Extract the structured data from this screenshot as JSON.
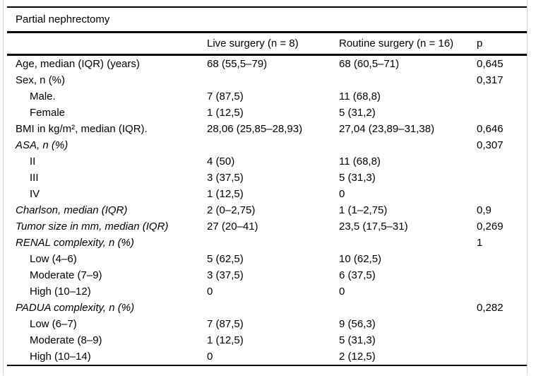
{
  "table": {
    "title": "Partial nephrectomy",
    "header": {
      "label": "",
      "live": "Live surgery (n = 8)",
      "routine": "Routine surgery (n = 16)",
      "p": "p"
    },
    "rows": [
      {
        "label": "Age, median (IQR) (years)",
        "indent": false,
        "italic": false,
        "live": "68 (55,5–79)",
        "routine": "68 (60,5–71)",
        "p": "0,645"
      },
      {
        "label": "Sex, n (%)",
        "indent": false,
        "italic": false,
        "live": "",
        "routine": "",
        "p": "0,317"
      },
      {
        "label": "Male.",
        "indent": true,
        "italic": false,
        "live": "7 (87,5)",
        "routine": "11 (68,8)",
        "p": ""
      },
      {
        "label": "Female",
        "indent": true,
        "italic": false,
        "live": "1 (12,5)",
        "routine": "5 (31,2)",
        "p": ""
      },
      {
        "label": "BMI in kg/m², median (IQR).",
        "indent": false,
        "italic": false,
        "live": "28,06 (25,85–28,93)",
        "routine": "27,04 (23,89–31,38)",
        "p": "0,646"
      },
      {
        "label": "ASA, n (%)",
        "indent": false,
        "italic": true,
        "live": "",
        "routine": "",
        "p": "0,307"
      },
      {
        "label": "II",
        "indent": true,
        "italic": false,
        "live": "4 (50)",
        "routine": "11 (68,8)",
        "p": ""
      },
      {
        "label": "III",
        "indent": true,
        "italic": false,
        "live": "3 (37,5)",
        "routine": "5 (31,3)",
        "p": ""
      },
      {
        "label": "IV",
        "indent": true,
        "italic": false,
        "live": "1 (12,5)",
        "routine": "0",
        "p": ""
      },
      {
        "label": "Charlson, median (IQR)",
        "indent": false,
        "italic": true,
        "live": "2 (0–2,75)",
        "routine": "1 (1–2,75)",
        "p": "0,9"
      },
      {
        "label": "Tumor size in mm, median (IQR)",
        "indent": false,
        "italic": true,
        "live": "27 (20–41)",
        "routine": "23,5 (17,5–31)",
        "p": "0,269"
      },
      {
        "label": "RENAL complexity, n (%)",
        "indent": false,
        "italic": true,
        "live": "",
        "routine": "",
        "p": "1"
      },
      {
        "label": "Low (4–6)",
        "indent": true,
        "italic": false,
        "live": "5 (62,5)",
        "routine": "10 (62,5)",
        "p": ""
      },
      {
        "label": "Moderate (7–9)",
        "indent": true,
        "italic": false,
        "live": "3 (37,5)",
        "routine": "6 (37,5)",
        "p": ""
      },
      {
        "label": "High (10–12)",
        "indent": true,
        "italic": false,
        "live": "0",
        "routine": "0",
        "p": ""
      },
      {
        "label": "PADUA complexity, n (%)",
        "indent": false,
        "italic": true,
        "live": "",
        "routine": "",
        "p": "0,282"
      },
      {
        "label": "Low (6–7)",
        "indent": true,
        "italic": false,
        "live": "7 (87,5)",
        "routine": "9 (56,3)",
        "p": ""
      },
      {
        "label": "Moderate (8–9)",
        "indent": true,
        "italic": false,
        "live": "1 (12,5)",
        "routine": "5 (31,3)",
        "p": ""
      },
      {
        "label": "High (10–14)",
        "indent": true,
        "italic": false,
        "live": "0",
        "routine": "2 (12,5)",
        "p": ""
      }
    ]
  },
  "style": {
    "rule_color": "#000000",
    "text_color": "#000000",
    "background": "#ffffff",
    "frame_color": "#d4d4d4"
  }
}
